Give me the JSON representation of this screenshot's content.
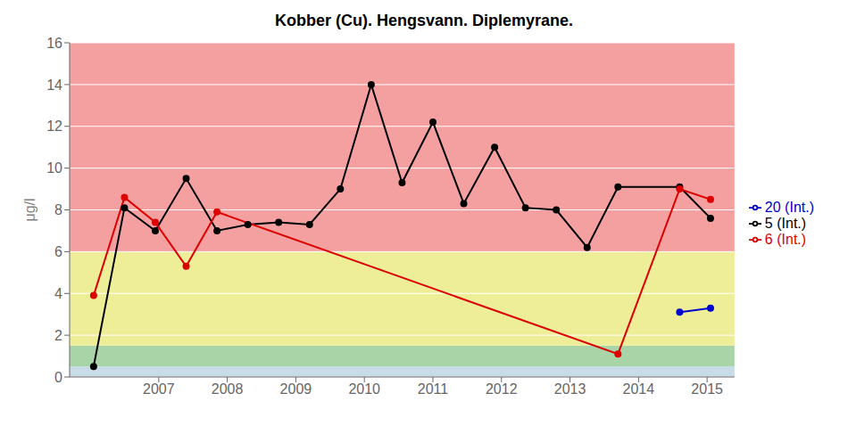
{
  "chart_data": {
    "type": "line",
    "title": "Kobber (Cu). Hengsvann. Diplemyrane.",
    "ylabel": "μg/l",
    "xlim": [
      2005.7,
      2015.4
    ],
    "ylim": [
      0,
      16
    ],
    "xticks": [
      2007,
      2008,
      2009,
      2010,
      2011,
      2012,
      2013,
      2014,
      2015
    ],
    "yticks": [
      0,
      2,
      4,
      6,
      8,
      10,
      12,
      14,
      16
    ],
    "grid": true,
    "legend": "right",
    "marker": "circle",
    "bands": [
      {
        "color": "#c8dce8",
        "ymin": 0,
        "ymax": 0.5
      },
      {
        "color": "#a8d4a8",
        "ymin": 0.5,
        "ymax": 1.5
      },
      {
        "color": "#eeee99",
        "ymin": 1.5,
        "ymax": 6.0
      },
      {
        "color": "#f4a0a0",
        "ymin": 6.0,
        "ymax": 16.0
      }
    ],
    "series": [
      {
        "name": "5 (Int.)",
        "color": "#000000",
        "x": [
          2006.05,
          2006.5,
          2006.95,
          2007.4,
          2007.85,
          2008.3,
          2008.75,
          2009.2,
          2009.65,
          2010.1,
          2010.55,
          2011.0,
          2011.45,
          2011.9,
          2012.35,
          2012.8,
          2013.25,
          2013.7,
          2014.6,
          2015.05
        ],
        "values": [
          0.5,
          8.1,
          7.0,
          9.5,
          7.0,
          7.3,
          7.4,
          7.3,
          9.0,
          14.0,
          9.3,
          12.2,
          8.3,
          11.0,
          8.1,
          8.0,
          6.2,
          9.1,
          9.1,
          7.6
        ]
      },
      {
        "name": "6 (Int.)",
        "color": "#dd0000",
        "x": [
          2006.05,
          2006.5,
          2006.95,
          2007.4,
          2007.85,
          2013.7,
          2014.6,
          2015.05
        ],
        "values": [
          3.9,
          8.6,
          7.4,
          5.3,
          7.9,
          1.1,
          9.0,
          8.5
        ]
      },
      {
        "name": "20 (Int.)",
        "color": "#0000cc",
        "x": [
          2014.6,
          2015.05
        ],
        "values": [
          3.1,
          3.3
        ]
      }
    ]
  }
}
